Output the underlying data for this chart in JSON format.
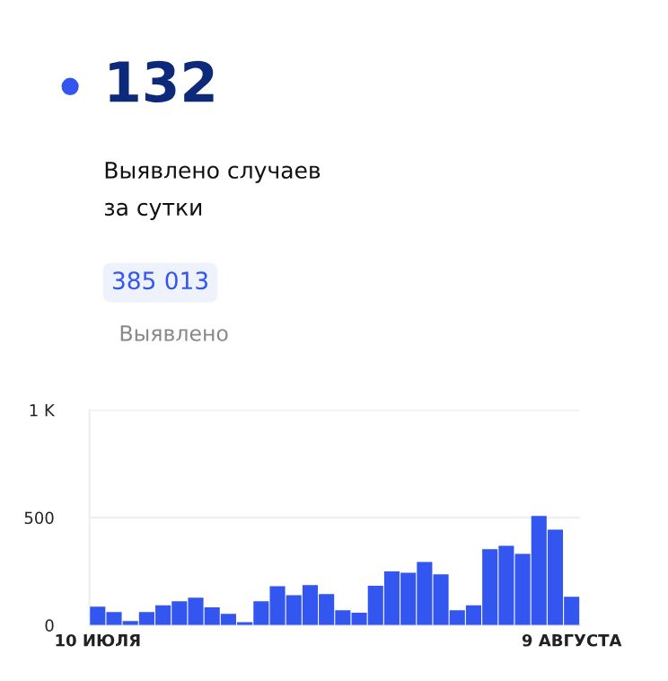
{
  "chart_data": {
    "type": "bar",
    "title": "132",
    "subtitle": "Выявлено случаев\nза сутки",
    "annotations": [
      "385 013",
      "Выявлено"
    ],
    "categories": [
      "10 ИЮЛЯ",
      null,
      null,
      null,
      null,
      null,
      null,
      null,
      null,
      null,
      null,
      null,
      null,
      null,
      null,
      null,
      null,
      null,
      null,
      null,
      null,
      null,
      null,
      null,
      null,
      null,
      null,
      null,
      null,
      "9 АВГУСТА"
    ],
    "values": [
      86,
      61,
      19,
      61,
      92,
      111,
      128,
      83,
      53,
      14,
      111,
      181,
      139,
      186,
      144,
      69,
      58,
      183,
      250,
      244,
      294,
      236,
      69,
      92,
      353,
      369,
      331,
      508,
      444,
      132
    ],
    "color": "#3355f0",
    "ylim": [
      0,
      1000
    ],
    "yticks": [
      0,
      500,
      {
        "value": 1000,
        "label": "1 K"
      }
    ],
    "grid": "y"
  }
}
